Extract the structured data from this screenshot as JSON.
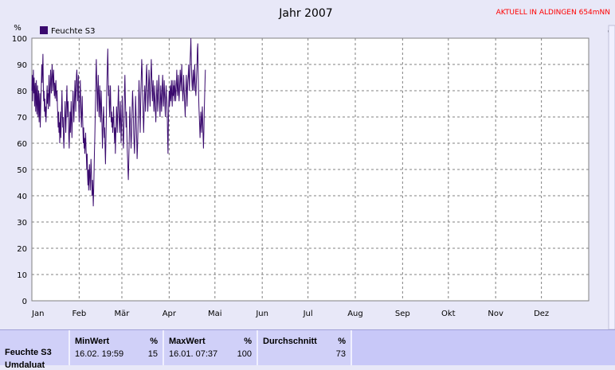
{
  "page": {
    "title": "Jahr 2007",
    "status": "AKTUELL IN ALDINGEN 654mNN",
    "right_label_fragment": "d"
  },
  "colors": {
    "background": "#e8e8f8",
    "plot_background": "#ffffff",
    "series": "#3a0a6e",
    "status_text": "#ff0000",
    "summary_panel": "#c8c8f8"
  },
  "chart_data": {
    "type": "line",
    "title": "Jahr 2007",
    "ylabel": "%",
    "ylim": [
      0,
      100
    ],
    "yticks": [
      0,
      10,
      20,
      30,
      40,
      50,
      60,
      70,
      80,
      90,
      100
    ],
    "xlim": [
      0,
      365
    ],
    "month_labels": [
      "Jan",
      "Feb",
      "Mär",
      "Apr",
      "Mai",
      "Jun",
      "Jul",
      "Aug",
      "Sep",
      "Okt",
      "Nov",
      "Dez"
    ],
    "month_starts": [
      0,
      31,
      59,
      90,
      120,
      151,
      181,
      212,
      243,
      273,
      304,
      334
    ],
    "grid": true,
    "legend": "top-left",
    "series": [
      {
        "name": "Feuchte S3",
        "sampling": "one value per 6 hours, starting 1 Jan 00:00",
        "values": [
          80,
          86,
          76,
          82,
          88,
          79,
          85,
          74,
          80,
          83,
          72,
          78,
          84,
          71,
          77,
          82,
          70,
          75,
          80,
          68,
          74,
          79,
          66,
          72,
          78,
          84,
          90,
          83,
          88,
          94,
          82,
          76,
          80,
          72,
          77,
          70,
          74,
          68,
          72,
          78,
          82,
          75,
          79,
          73,
          80,
          86,
          78,
          74,
          82,
          88,
          84,
          79,
          85,
          90,
          86,
          80,
          84,
          88,
          82,
          78,
          83,
          77,
          81,
          84,
          79,
          76,
          80,
          74,
          70,
          66,
          72,
          64,
          68,
          60,
          66,
          72,
          62,
          68,
          74,
          80,
          72,
          66,
          70,
          62,
          58,
          64,
          70,
          76,
          70,
          64,
          70,
          78,
          82,
          74,
          70,
          76,
          68,
          62,
          58,
          66,
          72,
          64,
          70,
          76,
          68,
          62,
          68,
          74,
          80,
          74,
          68,
          72,
          78,
          84,
          78,
          72,
          80,
          86,
          88,
          82,
          76,
          80,
          86,
          74,
          68,
          72,
          78,
          84,
          76,
          70,
          66,
          72,
          78,
          70,
          64,
          60,
          66,
          58,
          62,
          56,
          60,
          64,
          58,
          54,
          50,
          56,
          48,
          44,
          50,
          42,
          48,
          52,
          46,
          42,
          48,
          54,
          50,
          44,
          40,
          46,
          42,
          36,
          42,
          48,
          56,
          62,
          70,
          78,
          86,
          92,
          84,
          78,
          72,
          80,
          86,
          78,
          70,
          74,
          82,
          76,
          68,
          74,
          80,
          72,
          66,
          58,
          64,
          70,
          74,
          68,
          62,
          66,
          58,
          52,
          60,
          68,
          76,
          84,
          90,
          96,
          86,
          78,
          82,
          74,
          70,
          76,
          82,
          74,
          68,
          72,
          66,
          70,
          64,
          68,
          74,
          70,
          64,
          60,
          66,
          56,
          62,
          68,
          74,
          70,
          64,
          70,
          76,
          82,
          74,
          68,
          64,
          70,
          76,
          68,
          60,
          66,
          72,
          78,
          70,
          62,
          58,
          64,
          72,
          80,
          86,
          78,
          72,
          66,
          72,
          64,
          58,
          54,
          50,
          46,
          52,
          60,
          68,
          74,
          70,
          64,
          58,
          62,
          68,
          74,
          80,
          76,
          70,
          64,
          60,
          56,
          62,
          70,
          78,
          72,
          66,
          60,
          54,
          58,
          64,
          70,
          78,
          84,
          78,
          70,
          64,
          72,
          80,
          86,
          92,
          88,
          82,
          76,
          70,
          64,
          70,
          76,
          82,
          78,
          72,
          80,
          86,
          90,
          84,
          78,
          72,
          76,
          82,
          88,
          84,
          78,
          74,
          80,
          86,
          92,
          88,
          82,
          76,
          80,
          84,
          78,
          72,
          76,
          82,
          78,
          72,
          68,
          74,
          80,
          84,
          78,
          72,
          76,
          82,
          86,
          80,
          74,
          70,
          76,
          82,
          78,
          72,
          76,
          82,
          86,
          80,
          74,
          78,
          84,
          80,
          74,
          70,
          76,
          82,
          78,
          76,
          70,
          62,
          56,
          68,
          76,
          80,
          74,
          78,
          82,
          76,
          80,
          84,
          78,
          74,
          80,
          84,
          78,
          82,
          76,
          80,
          84,
          80,
          76,
          80,
          84,
          88,
          82,
          78,
          82,
          86,
          80,
          76,
          80,
          84,
          88,
          84,
          80,
          86,
          90,
          84,
          80,
          76,
          80,
          86,
          82,
          78,
          74,
          70,
          76,
          82,
          86,
          80,
          74,
          80,
          84,
          86,
          90,
          84,
          80,
          86,
          92,
          96,
          100,
          92,
          86,
          82,
          80,
          84,
          88,
          84,
          80,
          86,
          90,
          84,
          80,
          78,
          82,
          86,
          90,
          96,
          98,
          88,
          80,
          74,
          70,
          66,
          62,
          66,
          72,
          68,
          64,
          70,
          74,
          68,
          62,
          58,
          64,
          72,
          78,
          84,
          88
        ]
      }
    ]
  },
  "summary": {
    "row_label": "Feuchte S3",
    "row_label_2": "Umdaluat",
    "columns": [
      {
        "header": "MinWert",
        "unit": "%",
        "datetime": "16.02.  19:59",
        "value": "15"
      },
      {
        "header": "MaxWert",
        "unit": "%",
        "datetime": "16.01.  07:37",
        "value": "100"
      },
      {
        "header": "Durchschnitt",
        "unit": "%",
        "datetime": "",
        "value": "73"
      }
    ]
  }
}
